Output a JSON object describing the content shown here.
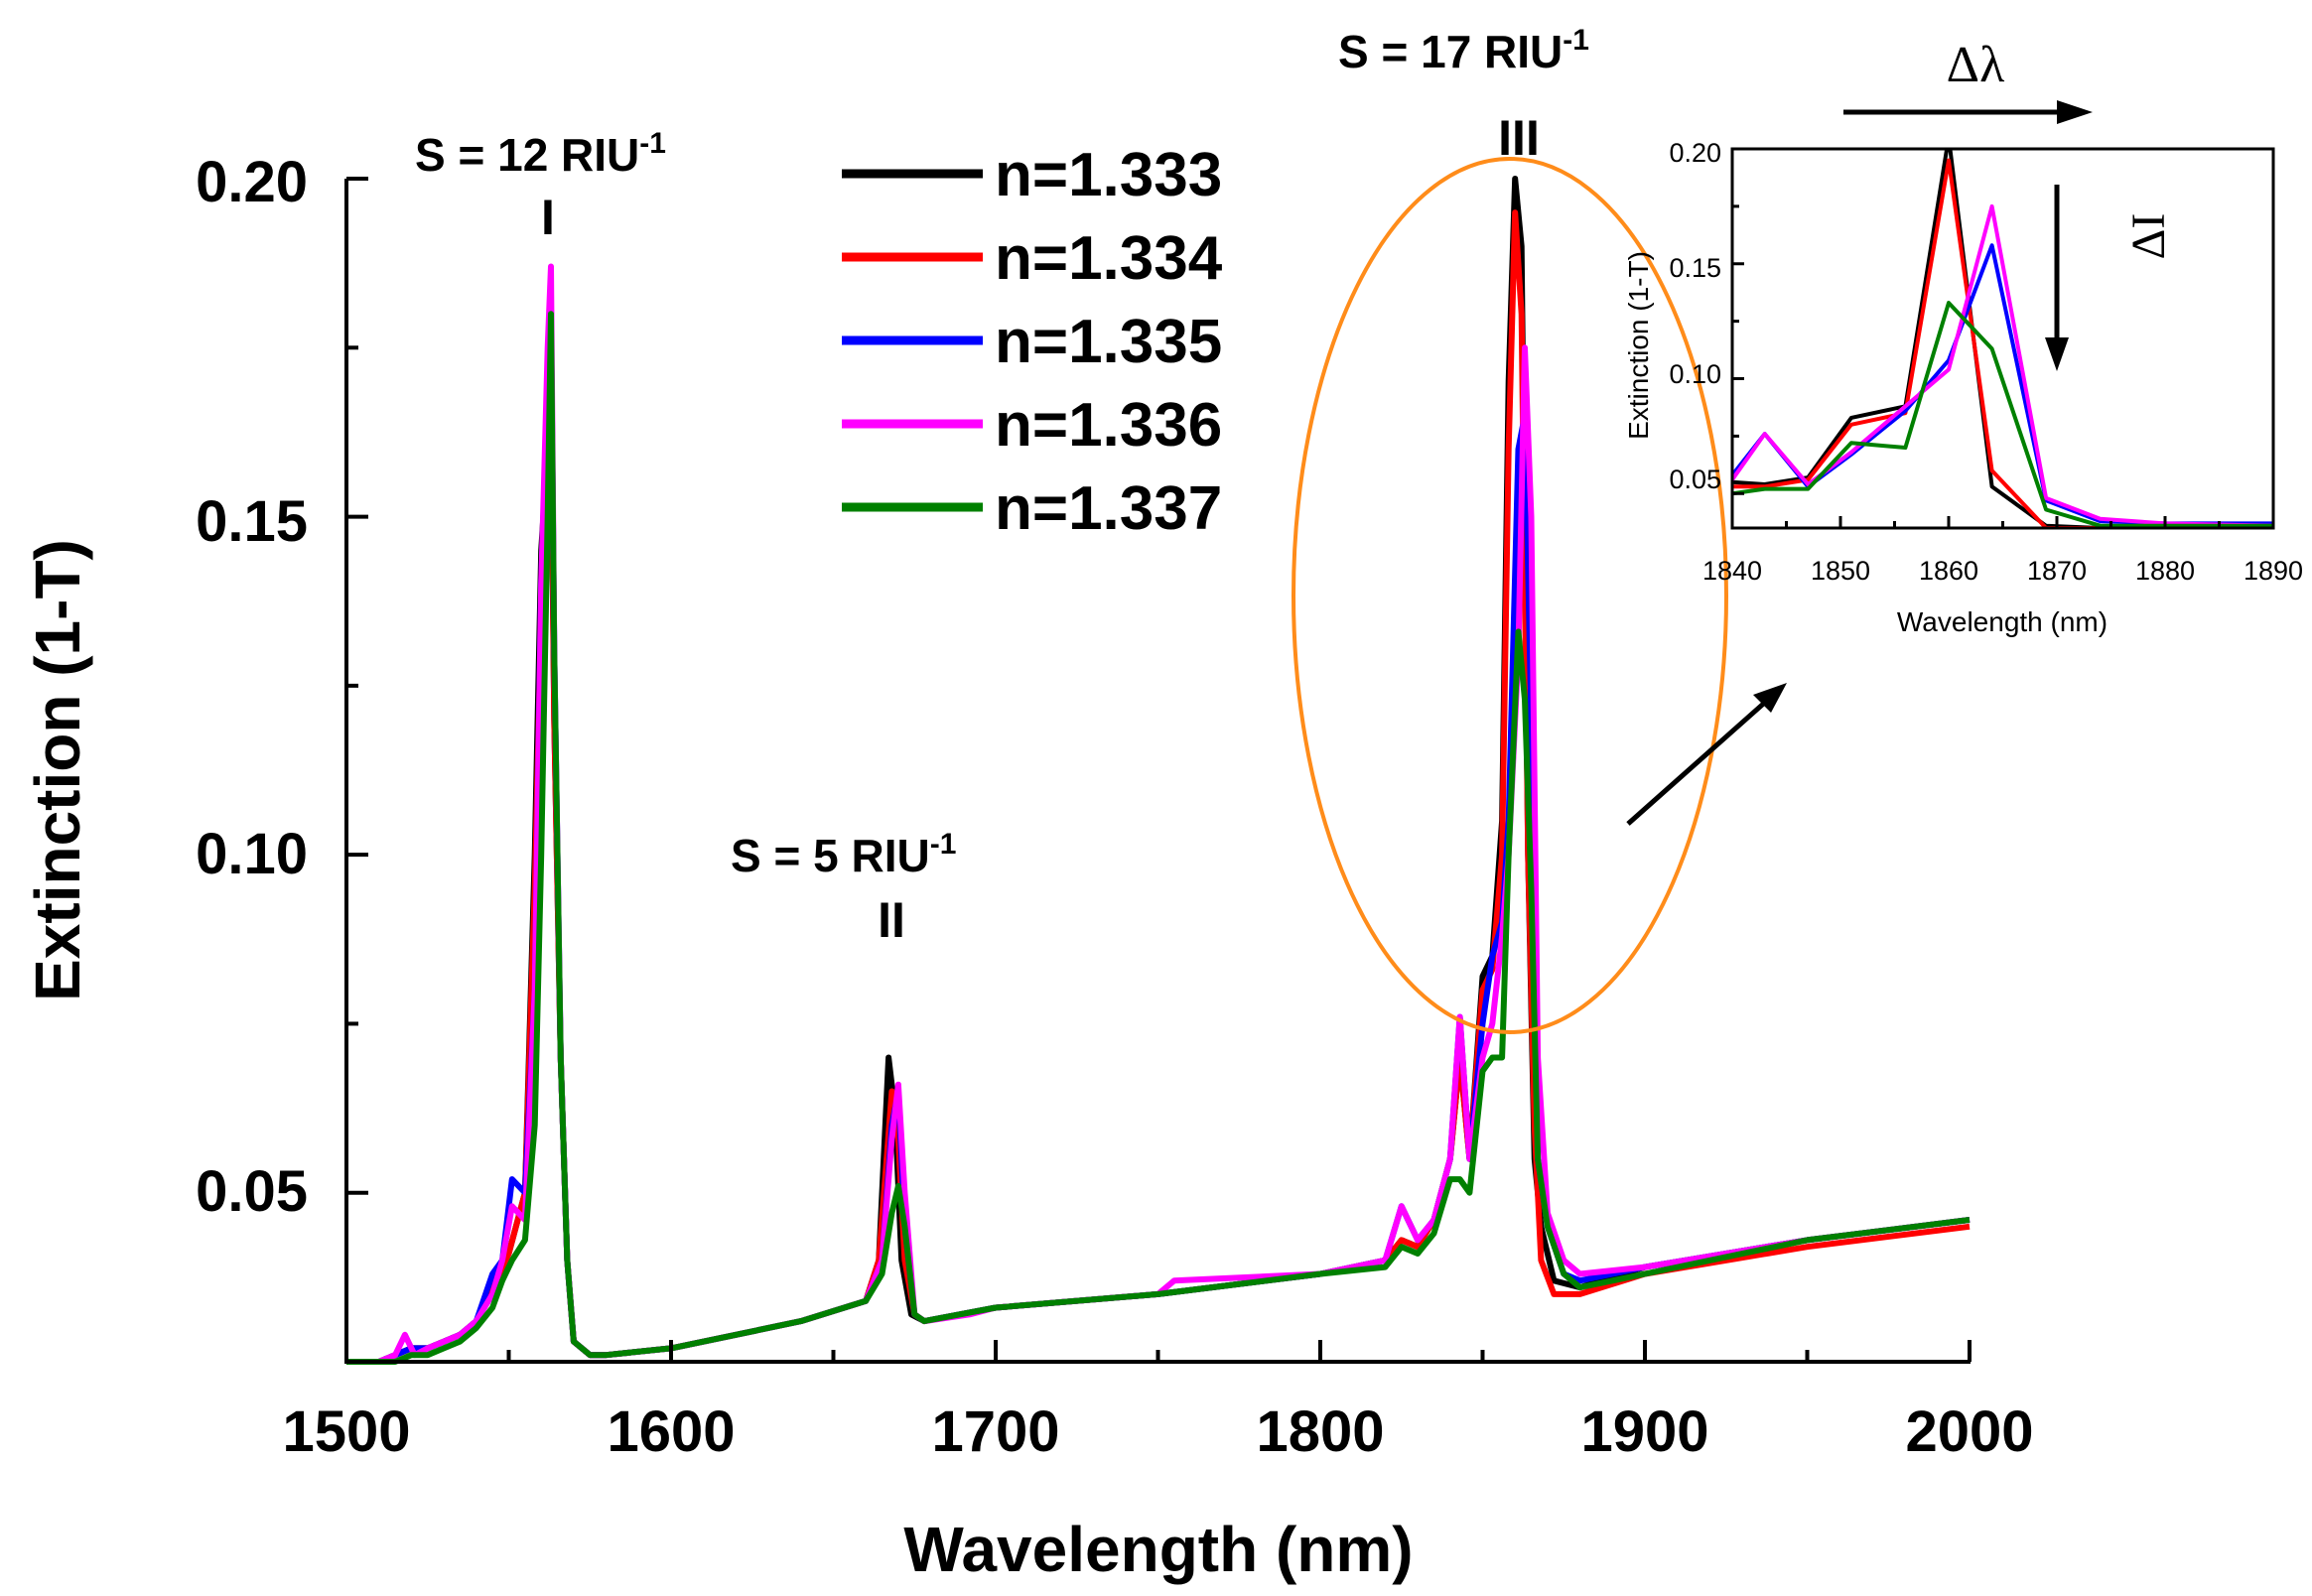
{
  "chart_data": [
    {
      "type": "line",
      "xlabel": "Wavelength (nm)",
      "ylabel": "Extinction (1-T)",
      "xlim": [
        1500,
        2000
      ],
      "ylim": [
        0.025,
        0.2
      ],
      "xticks": [
        1500,
        1600,
        1700,
        1800,
        1900,
        2000
      ],
      "xtick_labels": [
        "1500",
        "1600",
        "1700",
        "1800",
        "1900",
        "2000"
      ],
      "yticks": [
        0.05,
        0.1,
        0.15,
        0.2
      ],
      "ytick_labels": [
        "0.05",
        "0.10",
        "0.15",
        "0.20"
      ],
      "grid": false,
      "legend_position": "top-center",
      "annotations": [
        {
          "text": "S = 12 RIU",
          "sup": "-1",
          "label": "I",
          "x": 1563
        },
        {
          "text": "S = 5 RIU",
          "sup": "-1",
          "label": "II",
          "x": 1668
        },
        {
          "text": "S = 17 RIU",
          "sup": "-1",
          "label": "III",
          "x": 1860
        }
      ],
      "series": [
        {
          "name": "n=1.333",
          "color": "#000000",
          "x": [
            1500,
            1510,
            1515,
            1520,
            1525,
            1530,
            1535,
            1540,
            1545,
            1550,
            1555,
            1558,
            1560,
            1562,
            1563,
            1564,
            1566,
            1568,
            1570,
            1575,
            1580,
            1600,
            1620,
            1640,
            1660,
            1664,
            1667,
            1669,
            1671,
            1674,
            1678,
            1700,
            1750,
            1800,
            1820,
            1825,
            1830,
            1835,
            1840,
            1843,
            1846,
            1850,
            1853,
            1856,
            1858,
            1860,
            1862,
            1864,
            1866,
            1868,
            1872,
            1880,
            1900,
            1950,
            2000
          ],
          "y": [
            0.025,
            0.025,
            0.026,
            0.027,
            0.027,
            0.028,
            0.029,
            0.031,
            0.036,
            0.041,
            0.05,
            0.1,
            0.145,
            0.16,
            0.165,
            0.12,
            0.07,
            0.04,
            0.028,
            0.026,
            0.026,
            0.027,
            0.029,
            0.031,
            0.034,
            0.04,
            0.07,
            0.062,
            0.04,
            0.032,
            0.031,
            0.033,
            0.035,
            0.038,
            0.04,
            0.043,
            0.042,
            0.046,
            0.055,
            0.07,
            0.055,
            0.082,
            0.085,
            0.105,
            0.17,
            0.2,
            0.19,
            0.1,
            0.055,
            0.045,
            0.037,
            0.036,
            0.039,
            0.043,
            0.046
          ]
        },
        {
          "name": "n=1.334",
          "color": "#ff0000",
          "x": [
            1500,
            1510,
            1515,
            1520,
            1525,
            1530,
            1535,
            1540,
            1545,
            1550,
            1555,
            1558,
            1560,
            1562,
            1563,
            1564,
            1566,
            1568,
            1570,
            1575,
            1580,
            1600,
            1620,
            1640,
            1660,
            1664,
            1668,
            1670,
            1672,
            1675,
            1678,
            1700,
            1750,
            1800,
            1820,
            1825,
            1830,
            1835,
            1840,
            1843,
            1846,
            1850,
            1853,
            1856,
            1858,
            1860,
            1862,
            1864,
            1866,
            1868,
            1872,
            1880,
            1900,
            1950,
            2000
          ],
          "y": [
            0.025,
            0.025,
            0.026,
            0.027,
            0.027,
            0.028,
            0.029,
            0.031,
            0.036,
            0.041,
            0.05,
            0.095,
            0.135,
            0.16,
            0.17,
            0.12,
            0.07,
            0.04,
            0.028,
            0.026,
            0.026,
            0.027,
            0.029,
            0.031,
            0.034,
            0.04,
            0.065,
            0.058,
            0.04,
            0.032,
            0.031,
            0.033,
            0.035,
            0.038,
            0.04,
            0.043,
            0.042,
            0.046,
            0.055,
            0.07,
            0.055,
            0.08,
            0.083,
            0.1,
            0.16,
            0.195,
            0.18,
            0.1,
            0.06,
            0.04,
            0.035,
            0.035,
            0.038,
            0.042,
            0.045
          ]
        },
        {
          "name": "n=1.335",
          "color": "#0000ff",
          "x": [
            1500,
            1510,
            1515,
            1520,
            1525,
            1530,
            1535,
            1540,
            1545,
            1548,
            1551,
            1555,
            1558,
            1560,
            1562,
            1563,
            1564,
            1566,
            1568,
            1570,
            1575,
            1580,
            1600,
            1620,
            1640,
            1660,
            1665,
            1668,
            1670,
            1672,
            1675,
            1678,
            1700,
            1750,
            1800,
            1820,
            1825,
            1830,
            1835,
            1840,
            1843,
            1846,
            1850,
            1853,
            1856,
            1858,
            1861,
            1863,
            1865,
            1867,
            1870,
            1875,
            1880,
            1900,
            1950,
            2000
          ],
          "y": [
            0.025,
            0.025,
            0.026,
            0.027,
            0.027,
            0.028,
            0.029,
            0.031,
            0.038,
            0.04,
            0.052,
            0.05,
            0.08,
            0.14,
            0.17,
            0.18,
            0.13,
            0.07,
            0.04,
            0.028,
            0.026,
            0.026,
            0.027,
            0.029,
            0.031,
            0.034,
            0.04,
            0.06,
            0.065,
            0.045,
            0.032,
            0.031,
            0.033,
            0.035,
            0.038,
            0.04,
            0.048,
            0.043,
            0.046,
            0.055,
            0.076,
            0.055,
            0.075,
            0.085,
            0.09,
            0.105,
            0.16,
            0.165,
            0.12,
            0.055,
            0.045,
            0.038,
            0.037,
            0.039,
            0.043,
            0.046
          ]
        },
        {
          "name": "n=1.336",
          "color": "#ff00ff",
          "x": [
            1500,
            1510,
            1515,
            1518,
            1521,
            1525,
            1530,
            1535,
            1540,
            1545,
            1548,
            1551,
            1555,
            1558,
            1560,
            1562,
            1563,
            1564,
            1566,
            1568,
            1570,
            1575,
            1580,
            1600,
            1620,
            1640,
            1660,
            1665,
            1668,
            1670,
            1672,
            1675,
            1678,
            1692,
            1700,
            1750,
            1755,
            1800,
            1820,
            1825,
            1830,
            1835,
            1840,
            1843,
            1846,
            1850,
            1853,
            1856,
            1858,
            1861,
            1863,
            1865,
            1867,
            1870,
            1875,
            1880,
            1900,
            1950,
            2000
          ],
          "y": [
            0.025,
            0.025,
            0.026,
            0.029,
            0.026,
            0.027,
            0.028,
            0.029,
            0.031,
            0.035,
            0.04,
            0.048,
            0.046,
            0.08,
            0.14,
            0.175,
            0.187,
            0.13,
            0.07,
            0.04,
            0.028,
            0.026,
            0.026,
            0.027,
            0.029,
            0.031,
            0.034,
            0.04,
            0.058,
            0.066,
            0.05,
            0.032,
            0.031,
            0.032,
            0.033,
            0.035,
            0.037,
            0.038,
            0.04,
            0.048,
            0.043,
            0.046,
            0.055,
            0.076,
            0.055,
            0.07,
            0.075,
            0.088,
            0.1,
            0.13,
            0.175,
            0.15,
            0.07,
            0.047,
            0.04,
            0.038,
            0.039,
            0.043,
            0.046
          ]
        },
        {
          "name": "n=1.337",
          "color": "#008000",
          "x": [
            1500,
            1510,
            1515,
            1520,
            1525,
            1530,
            1535,
            1540,
            1545,
            1548,
            1551,
            1555,
            1558,
            1560,
            1562,
            1563,
            1564,
            1566,
            1568,
            1570,
            1575,
            1580,
            1600,
            1620,
            1640,
            1660,
            1665,
            1668,
            1670,
            1672,
            1675,
            1678,
            1700,
            1750,
            1800,
            1820,
            1825,
            1830,
            1835,
            1840,
            1843,
            1846,
            1850,
            1853,
            1856,
            1858,
            1861,
            1863,
            1865,
            1867,
            1870,
            1875,
            1880,
            1900,
            1950,
            2000
          ],
          "y": [
            0.025,
            0.025,
            0.025,
            0.026,
            0.026,
            0.027,
            0.028,
            0.03,
            0.033,
            0.037,
            0.04,
            0.043,
            0.06,
            0.1,
            0.15,
            0.18,
            0.13,
            0.07,
            0.04,
            0.028,
            0.026,
            0.026,
            0.027,
            0.029,
            0.031,
            0.034,
            0.038,
            0.047,
            0.051,
            0.045,
            0.032,
            0.031,
            0.033,
            0.035,
            0.038,
            0.039,
            0.042,
            0.041,
            0.044,
            0.052,
            0.052,
            0.05,
            0.068,
            0.07,
            0.07,
            0.1,
            0.133,
            0.123,
            0.095,
            0.055,
            0.045,
            0.038,
            0.036,
            0.038,
            0.043,
            0.046
          ]
        }
      ]
    },
    {
      "type": "line",
      "xlabel": "Wavelength (nm)",
      "ylabel": "Extinction (1-T)",
      "xlim": [
        1840,
        1890
      ],
      "ylim": [
        0.035,
        0.2
      ],
      "xticks": [
        1840,
        1850,
        1860,
        1870,
        1880,
        1890
      ],
      "xtick_labels": [
        "1840",
        "1850",
        "1860",
        "1870",
        "1880",
        "1890"
      ],
      "yticks": [
        0.05,
        0.1,
        0.15,
        0.2
      ],
      "ytick_labels": [
        "0.05",
        "0.10",
        "0.15",
        "0.20"
      ],
      "grid": false,
      "annotations": [
        {
          "text": "Δλ",
          "meaning": "arrow pointing right"
        },
        {
          "text": "ΔI",
          "meaning": "arrow pointing down"
        }
      ],
      "series": [
        {
          "name": "n=1.333",
          "color": "#000000",
          "x": [
            1840,
            1843,
            1847,
            1851,
            1856,
            1860,
            1864,
            1869,
            1874,
            1880,
            1890
          ],
          "y": [
            0.055,
            0.054,
            0.057,
            0.083,
            0.088,
            0.205,
            0.053,
            0.036,
            0.035,
            0.035,
            0.035
          ]
        },
        {
          "name": "n=1.334",
          "color": "#ff0000",
          "x": [
            1840,
            1843,
            1847,
            1851,
            1856,
            1860,
            1864,
            1869,
            1874,
            1880,
            1890
          ],
          "y": [
            0.053,
            0.053,
            0.056,
            0.08,
            0.085,
            0.195,
            0.06,
            0.035,
            0.035,
            0.035,
            0.035
          ]
        },
        {
          "name": "n=1.335",
          "color": "#0000ff",
          "x": [
            1840,
            1843,
            1847,
            1851,
            1856,
            1860,
            1864,
            1869,
            1874,
            1880,
            1890
          ],
          "y": [
            0.058,
            0.076,
            0.053,
            0.067,
            0.086,
            0.108,
            0.158,
            0.047,
            0.038,
            0.037,
            0.037
          ]
        },
        {
          "name": "n=1.336",
          "color": "#ff00ff",
          "x": [
            1840,
            1843,
            1847,
            1851,
            1856,
            1860,
            1864,
            1869,
            1874,
            1880,
            1890
          ],
          "y": [
            0.056,
            0.076,
            0.054,
            0.068,
            0.088,
            0.104,
            0.175,
            0.048,
            0.039,
            0.037,
            0.036
          ]
        },
        {
          "name": "n=1.337",
          "color": "#008000",
          "x": [
            1840,
            1843,
            1847,
            1851,
            1856,
            1860,
            1864,
            1869,
            1874,
            1880,
            1890
          ],
          "y": [
            0.05,
            0.052,
            0.052,
            0.072,
            0.07,
            0.133,
            0.113,
            0.043,
            0.036,
            0.036,
            0.036
          ]
        }
      ]
    }
  ],
  "colors": {
    "ellipse": "#ff8c1a",
    "axis": "#000000"
  }
}
